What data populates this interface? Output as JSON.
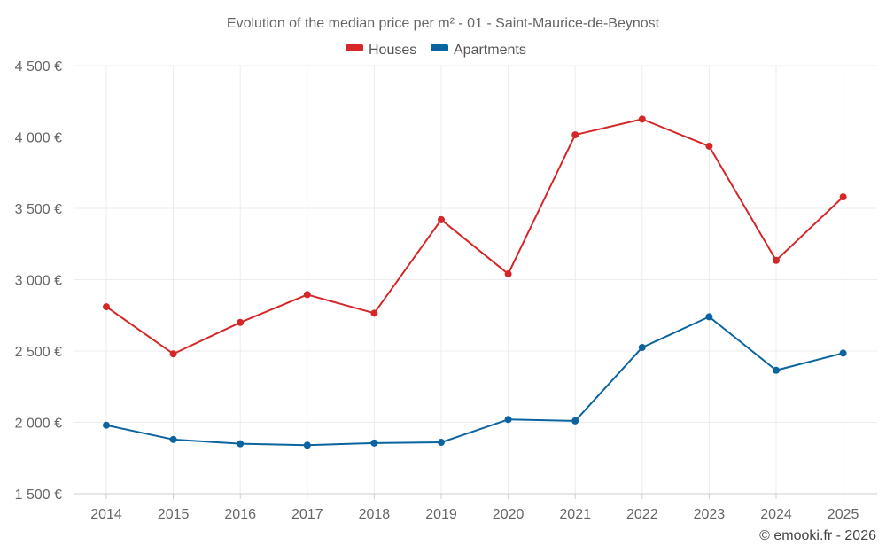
{
  "chart_data": {
    "type": "line",
    "title": "Evolution of the median price per m² - 01 - Saint-Maurice-de-Beynost",
    "categories": [
      "2014",
      "2015",
      "2016",
      "2017",
      "2018",
      "2019",
      "2020",
      "2021",
      "2022",
      "2023",
      "2024",
      "2025"
    ],
    "series": [
      {
        "name": "Houses",
        "color": "#d62728",
        "values": [
          2810,
          2480,
          2700,
          2895,
          2765,
          3420,
          3040,
          4015,
          4125,
          3935,
          3135,
          3580
        ]
      },
      {
        "name": "Apartments",
        "color": "#0b64a0",
        "values": [
          1980,
          1880,
          1850,
          1840,
          1855,
          1860,
          2020,
          2010,
          2525,
          2740,
          2365,
          2485
        ]
      }
    ],
    "ylim": [
      1500,
      4500
    ],
    "yticks": [
      1500,
      2000,
      2500,
      3000,
      3500,
      4000,
      4500
    ],
    "ytick_labels": [
      "1 500 €",
      "2 000 €",
      "2 500 €",
      "3 000 €",
      "3 500 €",
      "4 000 €",
      "4 500 €"
    ],
    "xlabel": "",
    "ylabel": "",
    "grid": true,
    "legend_position": "top-center",
    "credit": "© emooki.fr - 2026"
  }
}
